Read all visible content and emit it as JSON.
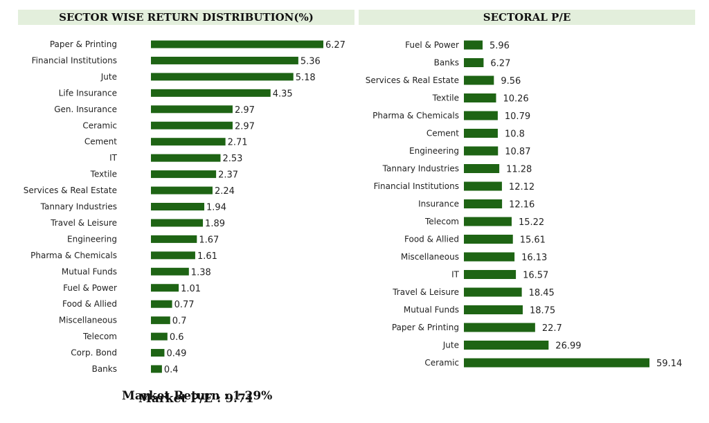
{
  "colors": {
    "bar": "#1e6414",
    "header_bg": "#e3efdc"
  },
  "chart_data": [
    {
      "type": "bar",
      "orientation": "horizontal",
      "title": "SECTOR WISE RETURN DISTRIBUTION(%)",
      "categories": [
        "Paper & Printing",
        "Financial Institutions",
        "Jute",
        "Life Insurance",
        "Gen. Insurance",
        "Ceramic",
        "Cement",
        "IT",
        "Textile",
        "Services & Real Estate",
        "Tannary Industries",
        "Travel & Leisure",
        "Engineering",
        "Pharma & Chemicals",
        "Mutual Funds",
        "Fuel & Power",
        "Food & Allied",
        "Miscellaneous",
        "Telecom",
        "Corp. Bond",
        "Banks"
      ],
      "values": [
        6.27,
        5.36,
        5.18,
        4.35,
        2.97,
        2.97,
        2.71,
        2.53,
        2.37,
        2.24,
        1.94,
        1.89,
        1.67,
        1.61,
        1.38,
        1.01,
        0.77,
        0.7,
        0.6,
        0.49,
        0.4
      ],
      "value_labels": [
        "6.27",
        "5.36",
        "5.18",
        "4.35",
        "2.97",
        "2.97",
        "2.71",
        "2.53",
        "2.37",
        "2.24",
        "1.94",
        "1.89",
        "1.67",
        "1.61",
        "1.38",
        "1.01",
        "0.77",
        "0.7",
        "0.6",
        "0.49",
        "0.4"
      ],
      "xlim": [
        0,
        6.27
      ],
      "footer": "Market Return : 1.29%"
    },
    {
      "type": "bar",
      "orientation": "horizontal",
      "title": "SECTORAL P/E",
      "categories": [
        "Fuel & Power",
        "Banks",
        "Services & Real Estate",
        "Textile",
        "Pharma & Chemicals",
        "Cement",
        "Engineering",
        "Tannary Industries",
        "Financial Institutions",
        "Insurance",
        "Telecom",
        "Food & Allied",
        "Miscellaneous",
        "IT",
        "Travel & Leisure",
        "Mutual Funds",
        "Paper & Printing",
        "Jute",
        "Ceramic"
      ],
      "values": [
        5.96,
        6.27,
        9.56,
        10.26,
        10.79,
        10.8,
        10.87,
        11.28,
        12.12,
        12.16,
        15.22,
        15.61,
        16.13,
        16.57,
        18.45,
        18.75,
        22.7,
        26.99,
        59.14
      ],
      "value_labels": [
        "5.96",
        "6.27",
        "9.56",
        "10.26",
        "10.79",
        "10.8",
        "10.87",
        "11.28",
        "12.12",
        "12.16",
        "15.22",
        "15.61",
        "16.13",
        "16.57",
        "18.45",
        "18.75",
        "22.7",
        "26.99",
        "59.14"
      ],
      "xlim": [
        0,
        59.14
      ],
      "footer": "Market P/E : 9.71"
    }
  ]
}
